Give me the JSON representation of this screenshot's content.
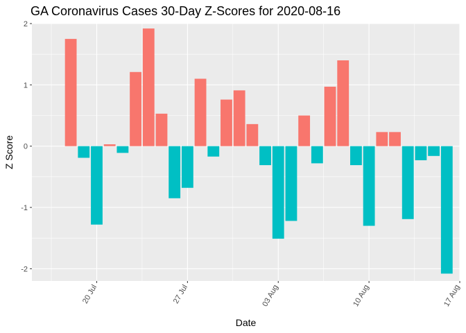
{
  "chart_data": {
    "type": "bar",
    "title": "GA Coronavirus Cases 30-Day Z-Scores for 2020-08-16",
    "xlabel": "Date",
    "ylabel": "Z Score",
    "ylim": [
      -2.2,
      2.0
    ],
    "y_ticks": [
      -2,
      -1,
      0,
      1,
      2
    ],
    "y_tick_labels": [
      "-2",
      "-1",
      "0",
      "1",
      "2"
    ],
    "x_ticks": [
      {
        "date": "2020-07-20",
        "label": "20 Jul"
      },
      {
        "date": "2020-07-27",
        "label": "27 Jul"
      },
      {
        "date": "2020-08-03",
        "label": "03 Aug"
      },
      {
        "date": "2020-08-10",
        "label": "10 Aug"
      },
      {
        "date": "2020-08-17",
        "label": "17 Aug"
      }
    ],
    "xlim": [
      "2020-07-15",
      "2020-08-17"
    ],
    "grid": true,
    "legend": "none",
    "colors": {
      "positive": "#F8766D",
      "negative": "#00BFC4",
      "panel": "#EBEBEB",
      "grid": "#FFFFFF"
    },
    "categories": [
      "2020-07-18",
      "2020-07-19",
      "2020-07-20",
      "2020-07-21",
      "2020-07-22",
      "2020-07-23",
      "2020-07-24",
      "2020-07-25",
      "2020-07-26",
      "2020-07-27",
      "2020-07-28",
      "2020-07-29",
      "2020-07-30",
      "2020-07-31",
      "2020-08-01",
      "2020-08-02",
      "2020-08-03",
      "2020-08-04",
      "2020-08-05",
      "2020-08-06",
      "2020-08-07",
      "2020-08-08",
      "2020-08-09",
      "2020-08-10",
      "2020-08-11",
      "2020-08-12",
      "2020-08-13",
      "2020-08-14",
      "2020-08-15",
      "2020-08-16"
    ],
    "values": [
      1.75,
      -0.19,
      -1.28,
      0.03,
      -0.11,
      1.21,
      1.92,
      0.53,
      -0.85,
      -0.68,
      1.1,
      -0.17,
      0.76,
      0.91,
      0.36,
      -0.31,
      -1.51,
      -1.22,
      0.5,
      -0.28,
      0.97,
      1.4,
      -0.31,
      -1.3,
      0.23,
      0.23,
      -1.19,
      -0.23,
      -0.16,
      -2.08
    ]
  }
}
